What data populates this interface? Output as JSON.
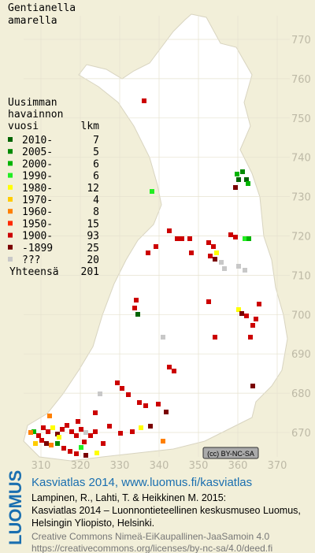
{
  "species": [
    "Gentianella",
    "amarella"
  ],
  "legend": {
    "heading": [
      "Uusimman",
      "havainnon",
      "vuosi"
    ],
    "count_heading": "lkm",
    "items": [
      {
        "label": "2010-",
        "count": 7,
        "color": "#006400"
      },
      {
        "label": "2005-",
        "count": 5,
        "color": "#008a00"
      },
      {
        "label": "2000-",
        "count": 6,
        "color": "#00b400"
      },
      {
        "label": "1990-",
        "count": 6,
        "color": "#22ee22"
      },
      {
        "label": "1980-",
        "count": 12,
        "color": "#ffff00"
      },
      {
        "label": "1970-",
        "count": 4,
        "color": "#ffcc00"
      },
      {
        "label": "1960-",
        "count": 8,
        "color": "#ff8000"
      },
      {
        "label": "1950-",
        "count": 15,
        "color": "#ff2a00"
      },
      {
        "label": "1900-",
        "count": 93,
        "color": "#cc0000"
      },
      {
        "label": "-1899",
        "count": 25,
        "color": "#7a0000"
      },
      {
        "label": "???",
        "count": 20,
        "color": "#c8c8c8"
      }
    ],
    "total_label": "Yhteensä",
    "total": 201
  },
  "grid": {
    "north_labels": [
      770,
      760,
      750,
      740,
      730,
      720,
      710,
      700,
      690,
      680,
      670
    ],
    "east_labels": [
      310,
      320,
      330,
      340,
      350,
      360,
      370
    ]
  },
  "license_badge": "(cc) BY-NC-SA",
  "footer": {
    "logo": "LUOMUS",
    "title": "Kasviatlas 2014, www.luomus.fi/kasviatlas",
    "citation": [
      "Lampinen, R., Lahti, T. & Heikkinen M. 2015:",
      "Kasviatlas 2014 – Luonnontieteellinen keskusmuseo Luomus,",
      "Helsingin Yliopisto, Helsinki."
    ],
    "license": [
      "Creative Commons Nimeä-EiKaupallinen-JaaSamoin 4.0",
      "https://creativecommons.org/licenses/by-nc-sa/4.0/deed.fi"
    ]
  }
}
